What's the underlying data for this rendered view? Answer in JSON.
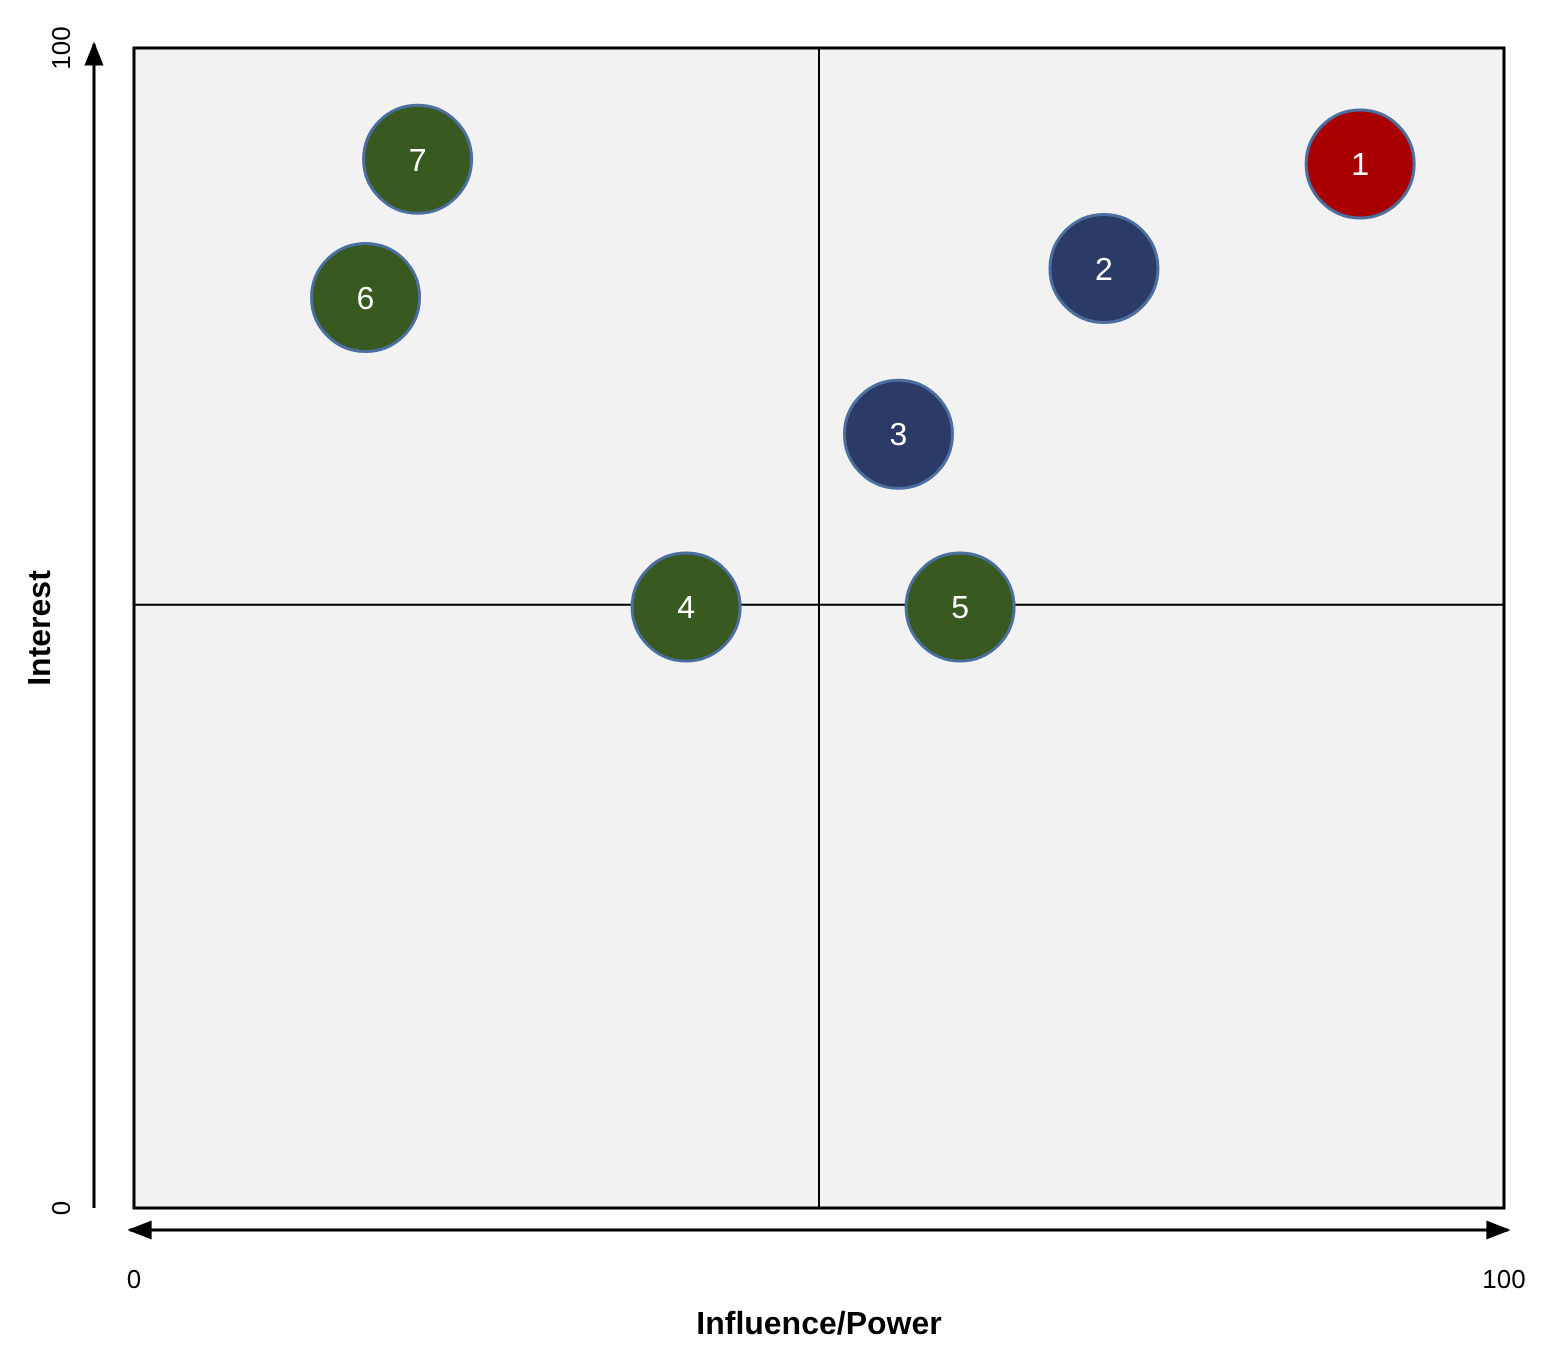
{
  "chart_data": {
    "type": "scatter",
    "marker": "circle",
    "xlabel": "Influence/Power",
    "ylabel": "Interest",
    "xlim": [
      0,
      100
    ],
    "ylim": [
      0,
      100
    ],
    "xticks": [
      0,
      100
    ],
    "yticks": [
      0,
      100
    ],
    "grid": false,
    "ref_lines": [
      {
        "axis": "x",
        "value": 50,
        "color": "#000000"
      },
      {
        "axis": "y",
        "value": 52,
        "color": "#000000"
      }
    ],
    "series": [
      {
        "x": [
          89.5,
          70.8,
          55.8,
          40.3,
          60.3,
          16.9,
          20.7
        ],
        "values": [
          90,
          81,
          66.7,
          51.8,
          51.8,
          78.5,
          90.4
        ],
        "colors": [
          "#a80000",
          "#2c3a68",
          "#2c3a68",
          "#38591f",
          "#38591f",
          "#38591f",
          "#38591f"
        ]
      }
    ],
    "annotations": [
      {
        "text": "1",
        "x": 89.5,
        "y": 90
      },
      {
        "text": "2",
        "x": 70.8,
        "y": 81
      },
      {
        "text": "3",
        "x": 55.8,
        "y": 66.7
      },
      {
        "text": "4",
        "x": 40.3,
        "y": 51.8
      },
      {
        "text": "5",
        "x": 60.3,
        "y": 51.8
      },
      {
        "text": "6",
        "x": 16.9,
        "y": 78.5
      },
      {
        "text": "7",
        "x": 20.7,
        "y": 90.4
      }
    ]
  }
}
